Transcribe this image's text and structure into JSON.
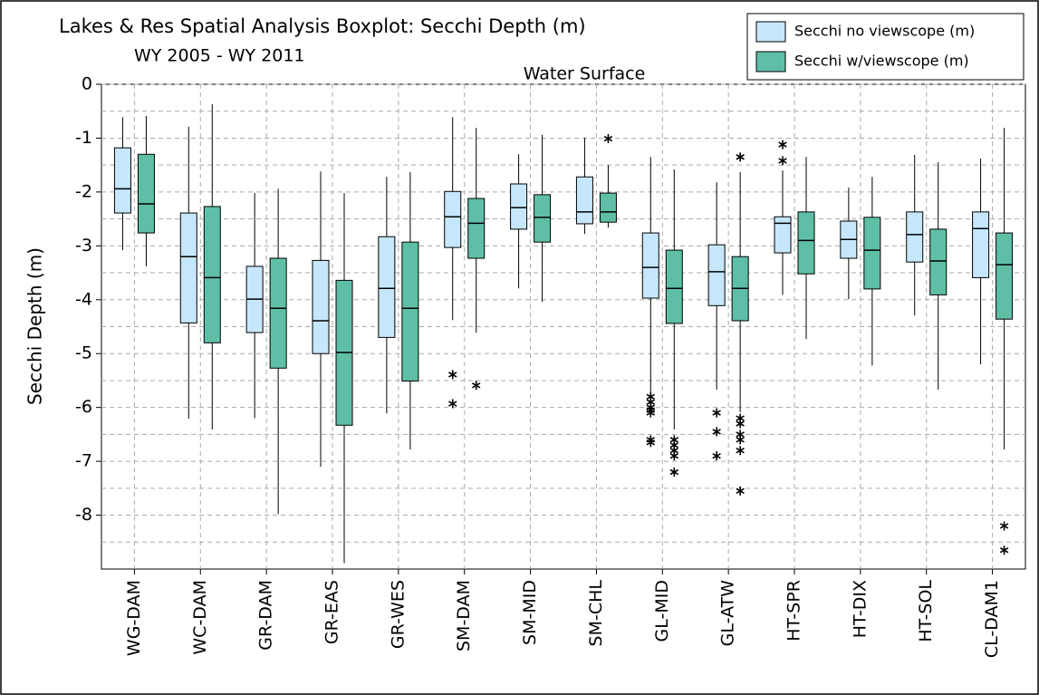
{
  "chart_data": {
    "type": "boxplot",
    "title": "Lakes & Res Spatial Analysis Boxplot: Secchi Depth (m)",
    "subtitle": "WY 2005 - WY 2011",
    "annotation": "Water Surface",
    "y_label": "Secchi Depth (m)",
    "ylim": [
      -9,
      0
    ],
    "yticks": [
      0,
      -1,
      -2,
      -3,
      -4,
      -5,
      -6,
      -7,
      -8
    ],
    "yminorticks": [
      -0.5,
      -1.5,
      -2.5,
      -3.5,
      -4.5,
      -5.5,
      -6.5,
      -7.5,
      -8.5
    ],
    "grid": true,
    "legend": "top-right",
    "categories": [
      "WG-DAM",
      "WC-DAM",
      "GR-DAM",
      "GR-EAS",
      "GR-WES",
      "SM-DAM",
      "SM-MID",
      "SM-CHL",
      "GL-MID",
      "GL-ATW",
      "HT-SPR",
      "HT-DIX",
      "HT-SOL",
      "CL-DAM1"
    ],
    "series": [
      {
        "name": "Secchi no viewscope (m)",
        "color": "#c6e7fb",
        "boxes": [
          {
            "min": -3.08,
            "q1": -2.39,
            "median": -1.94,
            "q3": -1.18,
            "max": -0.61,
            "outliers": []
          },
          {
            "min": -6.21,
            "q1": -4.43,
            "median": -3.2,
            "q3": -2.39,
            "max": -0.79,
            "outliers": []
          },
          {
            "min": -6.2,
            "q1": -4.61,
            "median": -3.99,
            "q3": -3.38,
            "max": -2.02,
            "outliers": []
          },
          {
            "min": -7.1,
            "q1": -5.0,
            "median": -4.39,
            "q3": -3.27,
            "max": -1.62,
            "outliers": []
          },
          {
            "min": -6.11,
            "q1": -4.7,
            "median": -3.79,
            "q3": -2.83,
            "max": -1.72,
            "outliers": []
          },
          {
            "min": -4.38,
            "q1": -3.03,
            "median": -2.46,
            "q3": -1.99,
            "max": -0.61,
            "outliers": [
              -5.39,
              -5.93
            ]
          },
          {
            "min": -3.79,
            "q1": -2.69,
            "median": -2.29,
            "q3": -1.85,
            "max": -1.3,
            "outliers": []
          },
          {
            "min": -2.78,
            "q1": -2.59,
            "median": -2.37,
            "q3": -1.72,
            "max": -0.99,
            "outliers": []
          },
          {
            "min": -5.72,
            "q1": -3.97,
            "median": -3.4,
            "q3": -2.76,
            "max": -1.35,
            "outliers": [
              -5.8,
              -5.9,
              -6.0,
              -6.05,
              -6.1,
              -6.6,
              -6.65
            ]
          },
          {
            "min": -5.67,
            "q1": -4.11,
            "median": -3.48,
            "q3": -2.98,
            "max": -1.82,
            "outliers": [
              -6.1,
              -6.45,
              -6.9
            ]
          },
          {
            "min": -3.91,
            "q1": -3.13,
            "median": -2.58,
            "q3": -2.46,
            "max": -1.6,
            "outliers": [
              -1.12,
              -1.42
            ]
          },
          {
            "min": -3.99,
            "q1": -3.23,
            "median": -2.88,
            "q3": -2.54,
            "max": -1.92,
            "outliers": []
          },
          {
            "min": -4.29,
            "q1": -3.3,
            "median": -2.79,
            "q3": -2.37,
            "max": -1.31,
            "outliers": []
          },
          {
            "min": -5.2,
            "q1": -3.59,
            "median": -2.68,
            "q3": -2.37,
            "max": -1.38,
            "outliers": []
          }
        ]
      },
      {
        "name": "Secchi w/viewscope (m)",
        "color": "#5fbfa6",
        "boxes": [
          {
            "min": -3.38,
            "q1": -2.76,
            "median": -2.22,
            "q3": -1.3,
            "max": -0.59,
            "outliers": []
          },
          {
            "min": -6.41,
            "q1": -4.8,
            "median": -3.59,
            "q3": -2.27,
            "max": -0.37,
            "outliers": []
          },
          {
            "min": -7.98,
            "q1": -5.27,
            "median": -4.16,
            "q3": -3.23,
            "max": -1.94,
            "outliers": []
          },
          {
            "min": -8.89,
            "q1": -6.33,
            "median": -4.98,
            "q3": -3.64,
            "max": -2.02,
            "outliers": []
          },
          {
            "min": -6.78,
            "q1": -5.51,
            "median": -4.16,
            "q3": -2.93,
            "max": -1.63,
            "outliers": []
          },
          {
            "min": -4.61,
            "q1": -3.23,
            "median": -2.58,
            "q3": -2.12,
            "max": -0.81,
            "outliers": [
              -5.59
            ]
          },
          {
            "min": -4.04,
            "q1": -2.93,
            "median": -2.47,
            "q3": -2.05,
            "max": -0.94,
            "outliers": []
          },
          {
            "min": -2.66,
            "q1": -2.56,
            "median": -2.37,
            "q3": -2.02,
            "max": -1.5,
            "outliers": [
              -1.01
            ]
          },
          {
            "min": -6.41,
            "q1": -4.44,
            "median": -3.79,
            "q3": -3.08,
            "max": -1.58,
            "outliers": [
              -6.6,
              -6.7,
              -6.8,
              -6.9,
              -7.2
            ]
          },
          {
            "min": -6.09,
            "q1": -4.39,
            "median": -3.79,
            "q3": -3.2,
            "max": -1.63,
            "outliers": [
              -1.35,
              -6.2,
              -6.3,
              -6.5,
              -6.6,
              -6.8,
              -7.55
            ]
          },
          {
            "min": -4.73,
            "q1": -3.52,
            "median": -2.9,
            "q3": -2.37,
            "max": -1.35,
            "outliers": []
          },
          {
            "min": -5.22,
            "q1": -3.8,
            "median": -3.08,
            "q3": -2.47,
            "max": -1.72,
            "outliers": []
          },
          {
            "min": -5.67,
            "q1": -3.91,
            "median": -3.28,
            "q3": -2.69,
            "max": -1.45,
            "outliers": []
          },
          {
            "min": -6.78,
            "q1": -4.36,
            "median": -3.35,
            "q3": -2.76,
            "max": -0.81,
            "outliers": [
              -8.2,
              -8.65
            ]
          }
        ]
      }
    ]
  }
}
